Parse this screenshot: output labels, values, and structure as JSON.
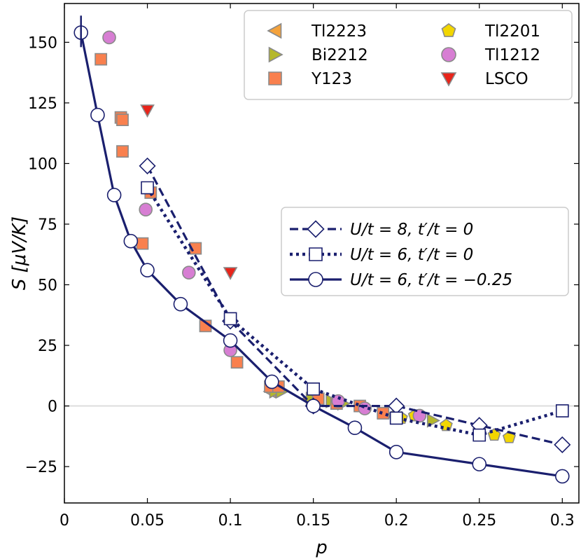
{
  "chart_data": {
    "type": "scatter",
    "xlabel": "p",
    "ylabel": "S [μV/K]",
    "xlim": [
      0,
      0.31
    ],
    "ylim": [
      -40,
      166
    ],
    "xticks": [
      0,
      0.05,
      0.1,
      0.15,
      0.2,
      0.25,
      0.3
    ],
    "xtick_labels": [
      "0",
      "0.05",
      "0.1",
      "0.15",
      "0.2",
      "0.25",
      "0.3"
    ],
    "yticks": [
      -25,
      0,
      25,
      50,
      75,
      100,
      125,
      150
    ],
    "ytick_labels": [
      "−25",
      "0",
      "25",
      "50",
      "75",
      "100",
      "125",
      "150"
    ],
    "zero_line": true,
    "series": [
      {
        "name": "Tl2223",
        "marker": "triangle-left",
        "color": "#f4a23c",
        "x": [
          0.124,
          0.147
        ],
        "y": [
          6,
          3
        ]
      },
      {
        "name": "Bi2212",
        "marker": "triangle-right",
        "color": "#b5b82a",
        "x": [
          0.127,
          0.131,
          0.149,
          0.161,
          0.168,
          0.222
        ],
        "y": [
          6,
          6,
          3,
          2,
          1,
          -6
        ]
      },
      {
        "name": "Y123",
        "marker": "square",
        "color": "#f9804e",
        "x": [
          0.022,
          0.034,
          0.035,
          0.035,
          0.047,
          0.052,
          0.079,
          0.085,
          0.104,
          0.124,
          0.129,
          0.153,
          0.164,
          0.178,
          0.192
        ],
        "y": [
          143,
          119,
          118,
          105,
          67,
          88,
          65,
          33,
          18,
          8,
          8,
          3,
          1,
          0,
          -3
        ]
      },
      {
        "name": "Tl2201",
        "marker": "pentagon",
        "color": "#f2d600",
        "x": [
          0.199,
          0.203,
          0.211,
          0.23,
          0.25,
          0.259,
          0.268
        ],
        "y": [
          -4,
          -5,
          -4,
          -8,
          -10,
          -12,
          -13
        ]
      },
      {
        "name": "Tl1212",
        "marker": "circle",
        "color": "#d77ed3",
        "x": [
          0.027,
          0.049,
          0.075,
          0.1,
          0.165,
          0.181,
          0.214
        ],
        "y": [
          152,
          81,
          55,
          23,
          2,
          -1,
          -4
        ]
      },
      {
        "name": "LSCO",
        "marker": "triangle-down",
        "color": "#e8241a",
        "x": [
          0.05,
          0.1
        ],
        "y": [
          122,
          55
        ]
      },
      {
        "name": "U/t = 8, t′/t = 0",
        "marker": "diamond",
        "line": "dashed",
        "color": "#1a1f6e",
        "x": [
          0.05,
          0.1,
          0.15,
          0.2,
          0.25,
          0.3
        ],
        "y": [
          99,
          35,
          0,
          0,
          -8,
          -16
        ]
      },
      {
        "name": "U/t = 6, t′/t = 0",
        "marker": "square-open",
        "line": "dotted",
        "color": "#1a1f6e",
        "x": [
          0.05,
          0.1,
          0.15,
          0.2,
          0.25,
          0.3
        ],
        "y": [
          90,
          36,
          7,
          -5,
          -12,
          -2
        ]
      },
      {
        "name": "U/t = 6, t′/t = −0.25",
        "marker": "circle-open",
        "line": "solid",
        "color": "#1a1f6e",
        "x": [
          0.01,
          0.02,
          0.03,
          0.04,
          0.05,
          0.07,
          0.1,
          0.125,
          0.15,
          0.175,
          0.2,
          0.25,
          0.3
        ],
        "y": [
          154,
          120,
          87,
          68,
          56,
          42,
          27,
          10,
          0,
          -9,
          -19,
          -24,
          -29
        ]
      }
    ]
  }
}
